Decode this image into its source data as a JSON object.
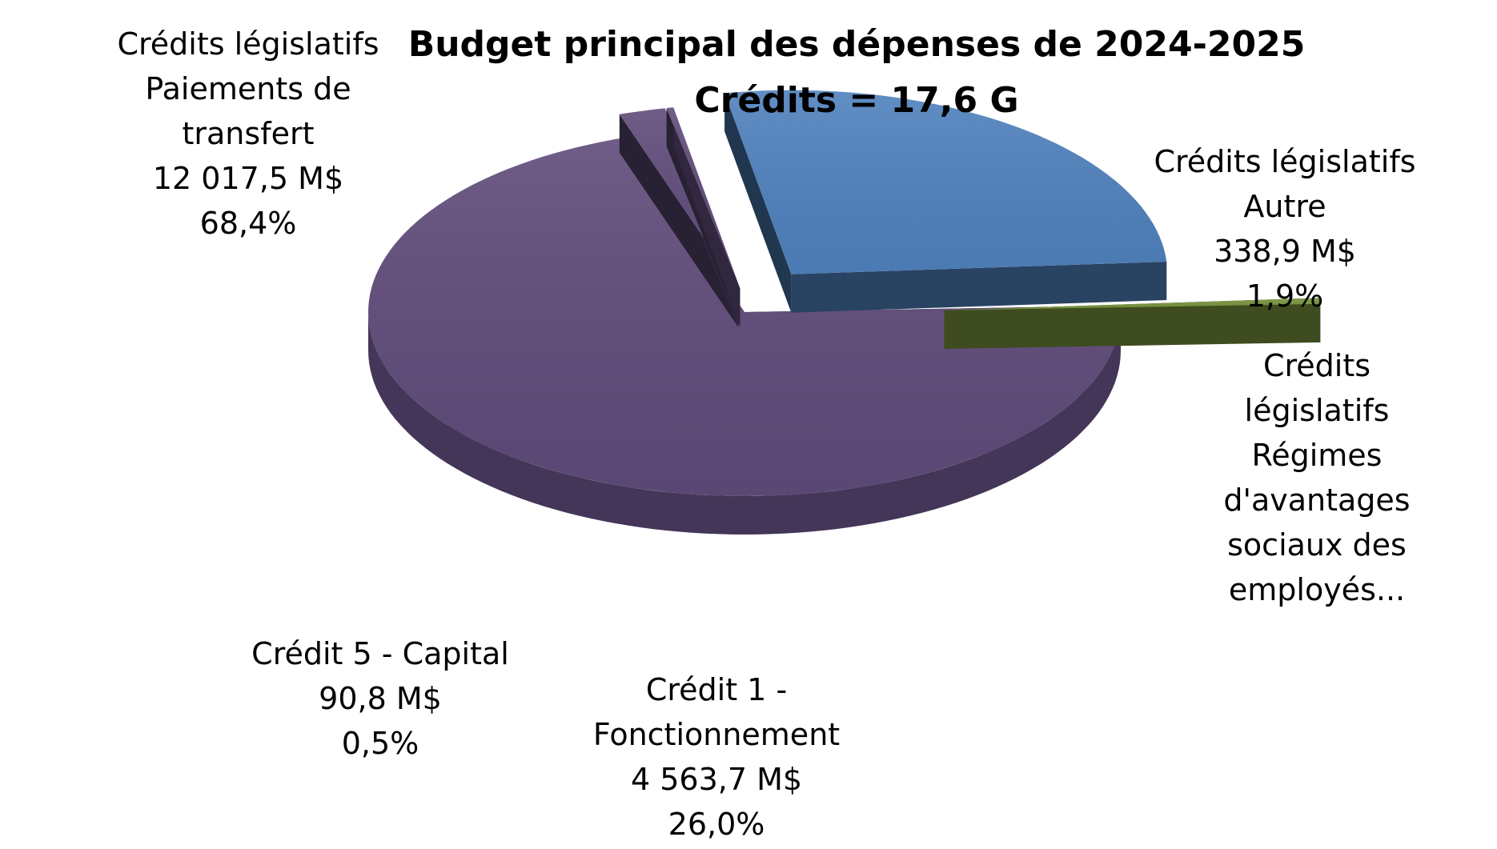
{
  "chart_data": {
    "type": "pie",
    "title": "Budget principal des dépenses de 2024-2025",
    "subtitle": "Crédits = 17,6 G",
    "slices": [
      {
        "lines": [
          "Crédits législatifs",
          "Paiements de",
          "transfert",
          "12 017,5 M$",
          "68,4%"
        ],
        "value": 12017.5,
        "percent": 68.4,
        "color": "#5f4b7a"
      },
      {
        "lines": [
          "Crédits législatifs",
          "Autre",
          "338,9 M$",
          "1,9%"
        ],
        "value": 338.9,
        "percent": 1.9,
        "color": "#5f4b7a"
      },
      {
        "lines": [
          "Crédits",
          "législatifs",
          "Régimes",
          "d'avantages",
          "sociaux des",
          "employés..."
        ],
        "value": 50.0,
        "percent": 0.3,
        "color": "#5f4b7a"
      },
      {
        "lines": [
          "Crédit 1 -",
          "Fonctionnement",
          "4 563,7 M$",
          "26,0%"
        ],
        "value": 4563.7,
        "percent": 26.0,
        "color": "#4f81bd"
      },
      {
        "lines": [
          "Crédit 5 - Capital",
          "90,8 M$",
          "0,5%"
        ],
        "value": 90.8,
        "percent": 0.5,
        "color": "#77933c"
      }
    ]
  }
}
